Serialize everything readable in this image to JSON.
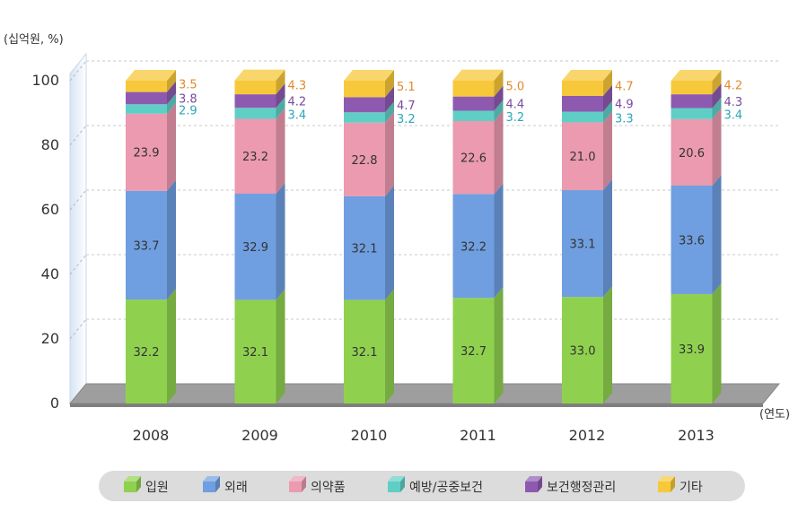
{
  "chart_data": {
    "type": "bar",
    "stacked": true,
    "unit_label": "(십억원, %)",
    "x_unit_label": "(연도)",
    "categories": [
      "2008",
      "2009",
      "2010",
      "2011",
      "2012",
      "2013"
    ],
    "ylim": [
      0,
      100
    ],
    "yticks": [
      0,
      20,
      40,
      60,
      80,
      100
    ],
    "grid": true,
    "legend_position": "bottom",
    "series": [
      {
        "name": "입원",
        "color": "#8fd14f",
        "label_color": "#333333",
        "values": [
          32.2,
          32.1,
          32.1,
          32.7,
          33.0,
          33.9
        ],
        "labels": [
          "32.2",
          "32.1",
          "32.1",
          "32.7",
          "33.0",
          "33.9"
        ]
      },
      {
        "name": "외래",
        "color": "#6f9fe0",
        "label_color": "#333333",
        "values": [
          33.7,
          32.9,
          32.1,
          32.2,
          33.1,
          33.6
        ],
        "labels": [
          "33.7",
          "32.9",
          "32.1",
          "32.2",
          "33.1",
          "33.6"
        ]
      },
      {
        "name": "의약품",
        "color": "#eb9ab0",
        "label_color": "#333333",
        "values": [
          23.9,
          23.2,
          22.8,
          22.6,
          21.0,
          20.6
        ],
        "labels": [
          "23.9",
          "23.2",
          "22.8",
          "22.6",
          "21.0",
          "20.6"
        ]
      },
      {
        "name": "예방/공중보건",
        "color": "#5fcfc6",
        "label_color": "#2aa7b5",
        "values": [
          2.9,
          3.4,
          3.2,
          3.2,
          3.3,
          3.4
        ],
        "labels": [
          "2.9",
          "3.4",
          "3.2",
          "3.2",
          "3.3",
          "3.4"
        ]
      },
      {
        "name": "보건행정관리",
        "color": "#8e5ab0",
        "label_color": "#7b4a9e",
        "values": [
          3.8,
          4.2,
          4.7,
          4.4,
          4.9,
          4.3
        ],
        "labels": [
          "3.8",
          "4.2",
          "4.7",
          "4.4",
          "4.9",
          "4.3"
        ]
      },
      {
        "name": "기타",
        "color": "#f7c83a",
        "label_color": "#e08a2a",
        "values": [
          3.5,
          4.3,
          5.1,
          5.0,
          4.7,
          4.2
        ],
        "labels": [
          "3.5",
          "4.3",
          "5.1",
          "5.0",
          "4.7",
          "4.2"
        ]
      }
    ]
  }
}
